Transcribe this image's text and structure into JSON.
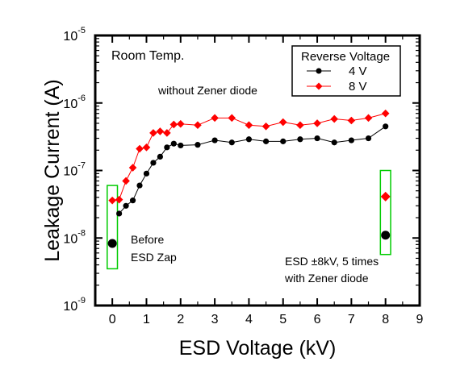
{
  "chart_data": {
    "type": "scatter",
    "title": "",
    "xlabel": "ESD Voltage (kV)",
    "ylabel": "Leakage Current (A)",
    "xlim": [
      -0.5,
      9
    ],
    "ylim": [
      1e-09,
      1e-05
    ],
    "yscale": "log",
    "x_ticks": [
      "0",
      "1",
      "2",
      "3",
      "4",
      "5",
      "6",
      "7",
      "8",
      "9"
    ],
    "y_ticks": [
      {
        "base": "10",
        "exp": "-9",
        "value": 1e-09
      },
      {
        "base": "10",
        "exp": "-8",
        "value": 1e-08
      },
      {
        "base": "10",
        "exp": "-7",
        "value": 1e-07
      },
      {
        "base": "10",
        "exp": "-6",
        "value": 1e-06
      },
      {
        "base": "10",
        "exp": "-5",
        "value": 1e-05
      }
    ],
    "grid": false,
    "legend": {
      "placement": "top-right",
      "title": "Reverse Voltage",
      "entries": [
        "4 V",
        "8 V"
      ]
    },
    "series": [
      {
        "name": "4 V",
        "color": "#000000",
        "marker": "circle",
        "x": [
          0.2,
          0.4,
          0.6,
          0.8,
          1.0,
          1.2,
          1.4,
          1.6,
          1.8,
          2.0,
          2.5,
          3.0,
          3.5,
          4.0,
          4.5,
          5.0,
          5.5,
          6.0,
          6.5,
          7.0,
          7.5,
          8.0
        ],
        "y": [
          2.3e-08,
          3e-08,
          3.6e-08,
          6e-08,
          9e-08,
          1.3e-07,
          1.6e-07,
          2.2e-07,
          2.5e-07,
          2.35e-07,
          2.4e-07,
          2.8e-07,
          2.6e-07,
          2.9e-07,
          2.7e-07,
          2.7e-07,
          2.9e-07,
          3e-07,
          2.6e-07,
          2.8e-07,
          3e-07,
          4.5e-07
        ]
      },
      {
        "name": "8 V",
        "color": "#ff0000",
        "marker": "diamond",
        "x": [
          0.0,
          0.2,
          0.4,
          0.6,
          0.8,
          1.0,
          1.2,
          1.4,
          1.6,
          1.8,
          2.0,
          2.5,
          3.0,
          3.5,
          4.0,
          4.5,
          5.0,
          5.5,
          6.0,
          6.5,
          7.0,
          7.5,
          8.0
        ],
        "y": [
          3.6e-08,
          3.7e-08,
          7e-08,
          1.1e-07,
          2.1e-07,
          2.2e-07,
          3.6e-07,
          3.8e-07,
          3.6e-07,
          4.8e-07,
          4.9e-07,
          4.7e-07,
          6e-07,
          6e-07,
          4.7e-07,
          4.5e-07,
          5.2e-07,
          4.7e-07,
          5e-07,
          5.8e-07,
          5.5e-07,
          6e-07,
          7e-07
        ]
      }
    ],
    "extra_points": [
      {
        "label": "before-zap-4v",
        "x": 0,
        "y": 8.3e-09,
        "color": "#000000",
        "marker": "circle"
      },
      {
        "label": "zener-4v",
        "x": 8,
        "y": 1.1e-08,
        "color": "#000000",
        "marker": "circle"
      },
      {
        "label": "zener-8v",
        "x": 8,
        "y": 4.1e-08,
        "color": "#ff0000",
        "marker": "diamond"
      }
    ],
    "highlight_boxes": [
      {
        "name": "before-zap-box",
        "x_min": -0.15,
        "x_max": 0.15,
        "y_min": 3.5e-09,
        "y_max": 6e-08,
        "color": "#00cc00"
      },
      {
        "name": "zener-box",
        "x_min": 7.85,
        "x_max": 8.15,
        "y_min": 5.7e-09,
        "y_max": 1e-07,
        "color": "#00cc00"
      }
    ],
    "annotations": {
      "room_temp": "Room Temp.",
      "without_zener": "without Zener diode",
      "before_zap_line1": "Before",
      "before_zap_line2": "ESD Zap",
      "esd_line1": "ESD ±8kV, 5 times",
      "esd_line2": "with Zener diode"
    }
  }
}
